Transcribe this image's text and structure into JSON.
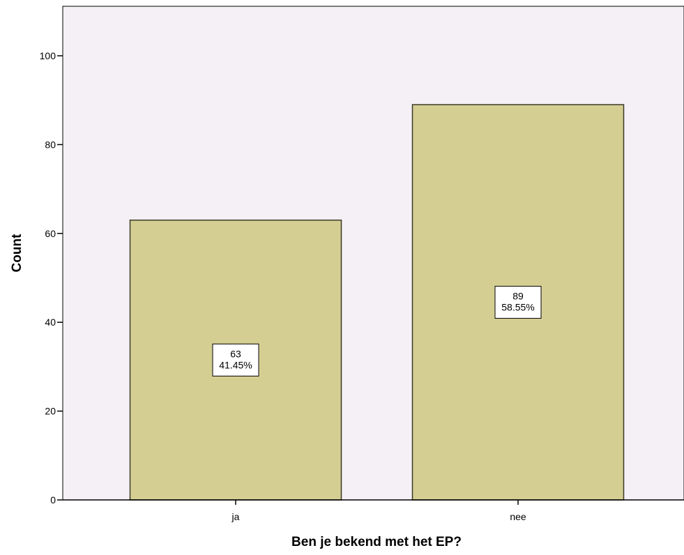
{
  "chart_data": {
    "type": "bar",
    "categories": [
      "ja",
      "nee"
    ],
    "values": [
      63,
      89
    ],
    "percent_labels": [
      "41.45%",
      "58.55%"
    ],
    "title": "",
    "xlabel": "Ben je bekend met het EP?",
    "ylabel": "Count",
    "ylim": [
      0,
      110
    ],
    "yticks": [
      0,
      20,
      40,
      60,
      80,
      100
    ],
    "grid": false,
    "legend": "none"
  },
  "colors": {
    "plot_background": "#f5f0f5",
    "bar_fill": "#d5ce93",
    "bar_stroke": "#3a3a28",
    "axis": "#000000",
    "label_box_fill": "#ffffff"
  }
}
